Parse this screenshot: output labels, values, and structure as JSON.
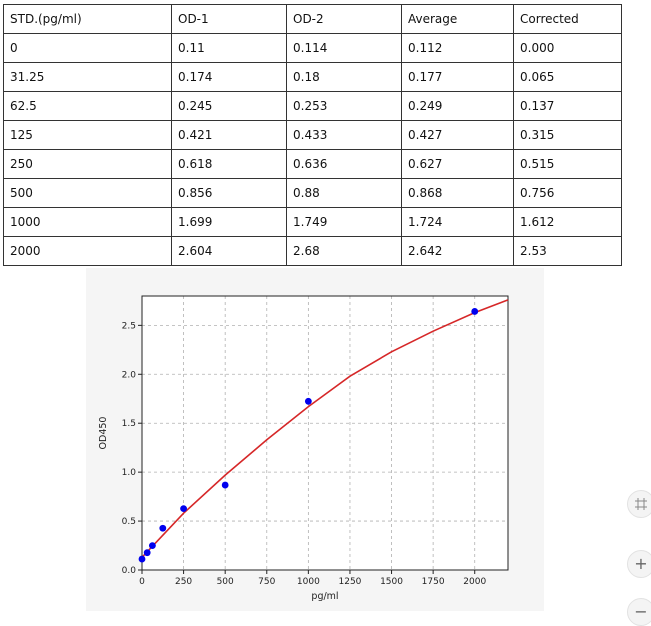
{
  "table": {
    "headers": [
      "STD.(pg/ml)",
      "OD-1",
      "OD-2",
      "Average",
      "Corrected"
    ],
    "rows": [
      [
        "0",
        "0.11",
        "0.114",
        "0.112",
        "0.000"
      ],
      [
        "31.25",
        "0.174",
        "0.18",
        "0.177",
        "0.065"
      ],
      [
        "62.5",
        "0.245",
        "0.253",
        "0.249",
        "0.137"
      ],
      [
        "125",
        "0.421",
        "0.433",
        "0.427",
        "0.315"
      ],
      [
        "250",
        "0.618",
        "0.636",
        "0.627",
        "0.515"
      ],
      [
        "500",
        "0.856",
        "0.88",
        "0.868",
        "0.756"
      ],
      [
        "1000",
        "1.699",
        "1.749",
        "1.724",
        "1.612"
      ],
      [
        "2000",
        "2.604",
        "2.68",
        "2.642",
        "2.53"
      ]
    ]
  },
  "chart_data": {
    "type": "scatter",
    "title": "",
    "xlabel": "pg/ml",
    "ylabel": "OD450",
    "xlim": [
      0,
      2200
    ],
    "ylim": [
      0,
      2.8
    ],
    "x_ticks": [
      0,
      250,
      500,
      750,
      1000,
      1250,
      1500,
      1750,
      2000
    ],
    "y_ticks": [
      0.0,
      0.5,
      1.0,
      1.5,
      2.0,
      2.5
    ],
    "x_tick_labels": [
      "0",
      "250",
      "500",
      "750",
      "1000",
      "1250",
      "1500",
      "1750",
      "2000"
    ],
    "y_tick_labels": [
      "0.0",
      "0.5",
      "1.0",
      "1.5",
      "2.0",
      "2.5"
    ],
    "grid": true,
    "series": [
      {
        "kind": "points",
        "color": "#0000ee",
        "x": [
          0,
          31.25,
          62.5,
          125,
          250,
          500,
          1000,
          2000
        ],
        "y": [
          0.112,
          0.177,
          0.249,
          0.427,
          0.627,
          0.868,
          1.724,
          2.642
        ]
      },
      {
        "kind": "fit-curve",
        "color": "#d62728",
        "x": [
          0,
          250,
          500,
          750,
          1000,
          1250,
          1500,
          1750,
          2000,
          2200
        ],
        "y": [
          0.13,
          0.58,
          0.97,
          1.33,
          1.67,
          1.98,
          2.23,
          2.44,
          2.63,
          2.76
        ]
      }
    ]
  },
  "side_buttons": {
    "labels": [
      "",
      "+",
      "−"
    ]
  }
}
